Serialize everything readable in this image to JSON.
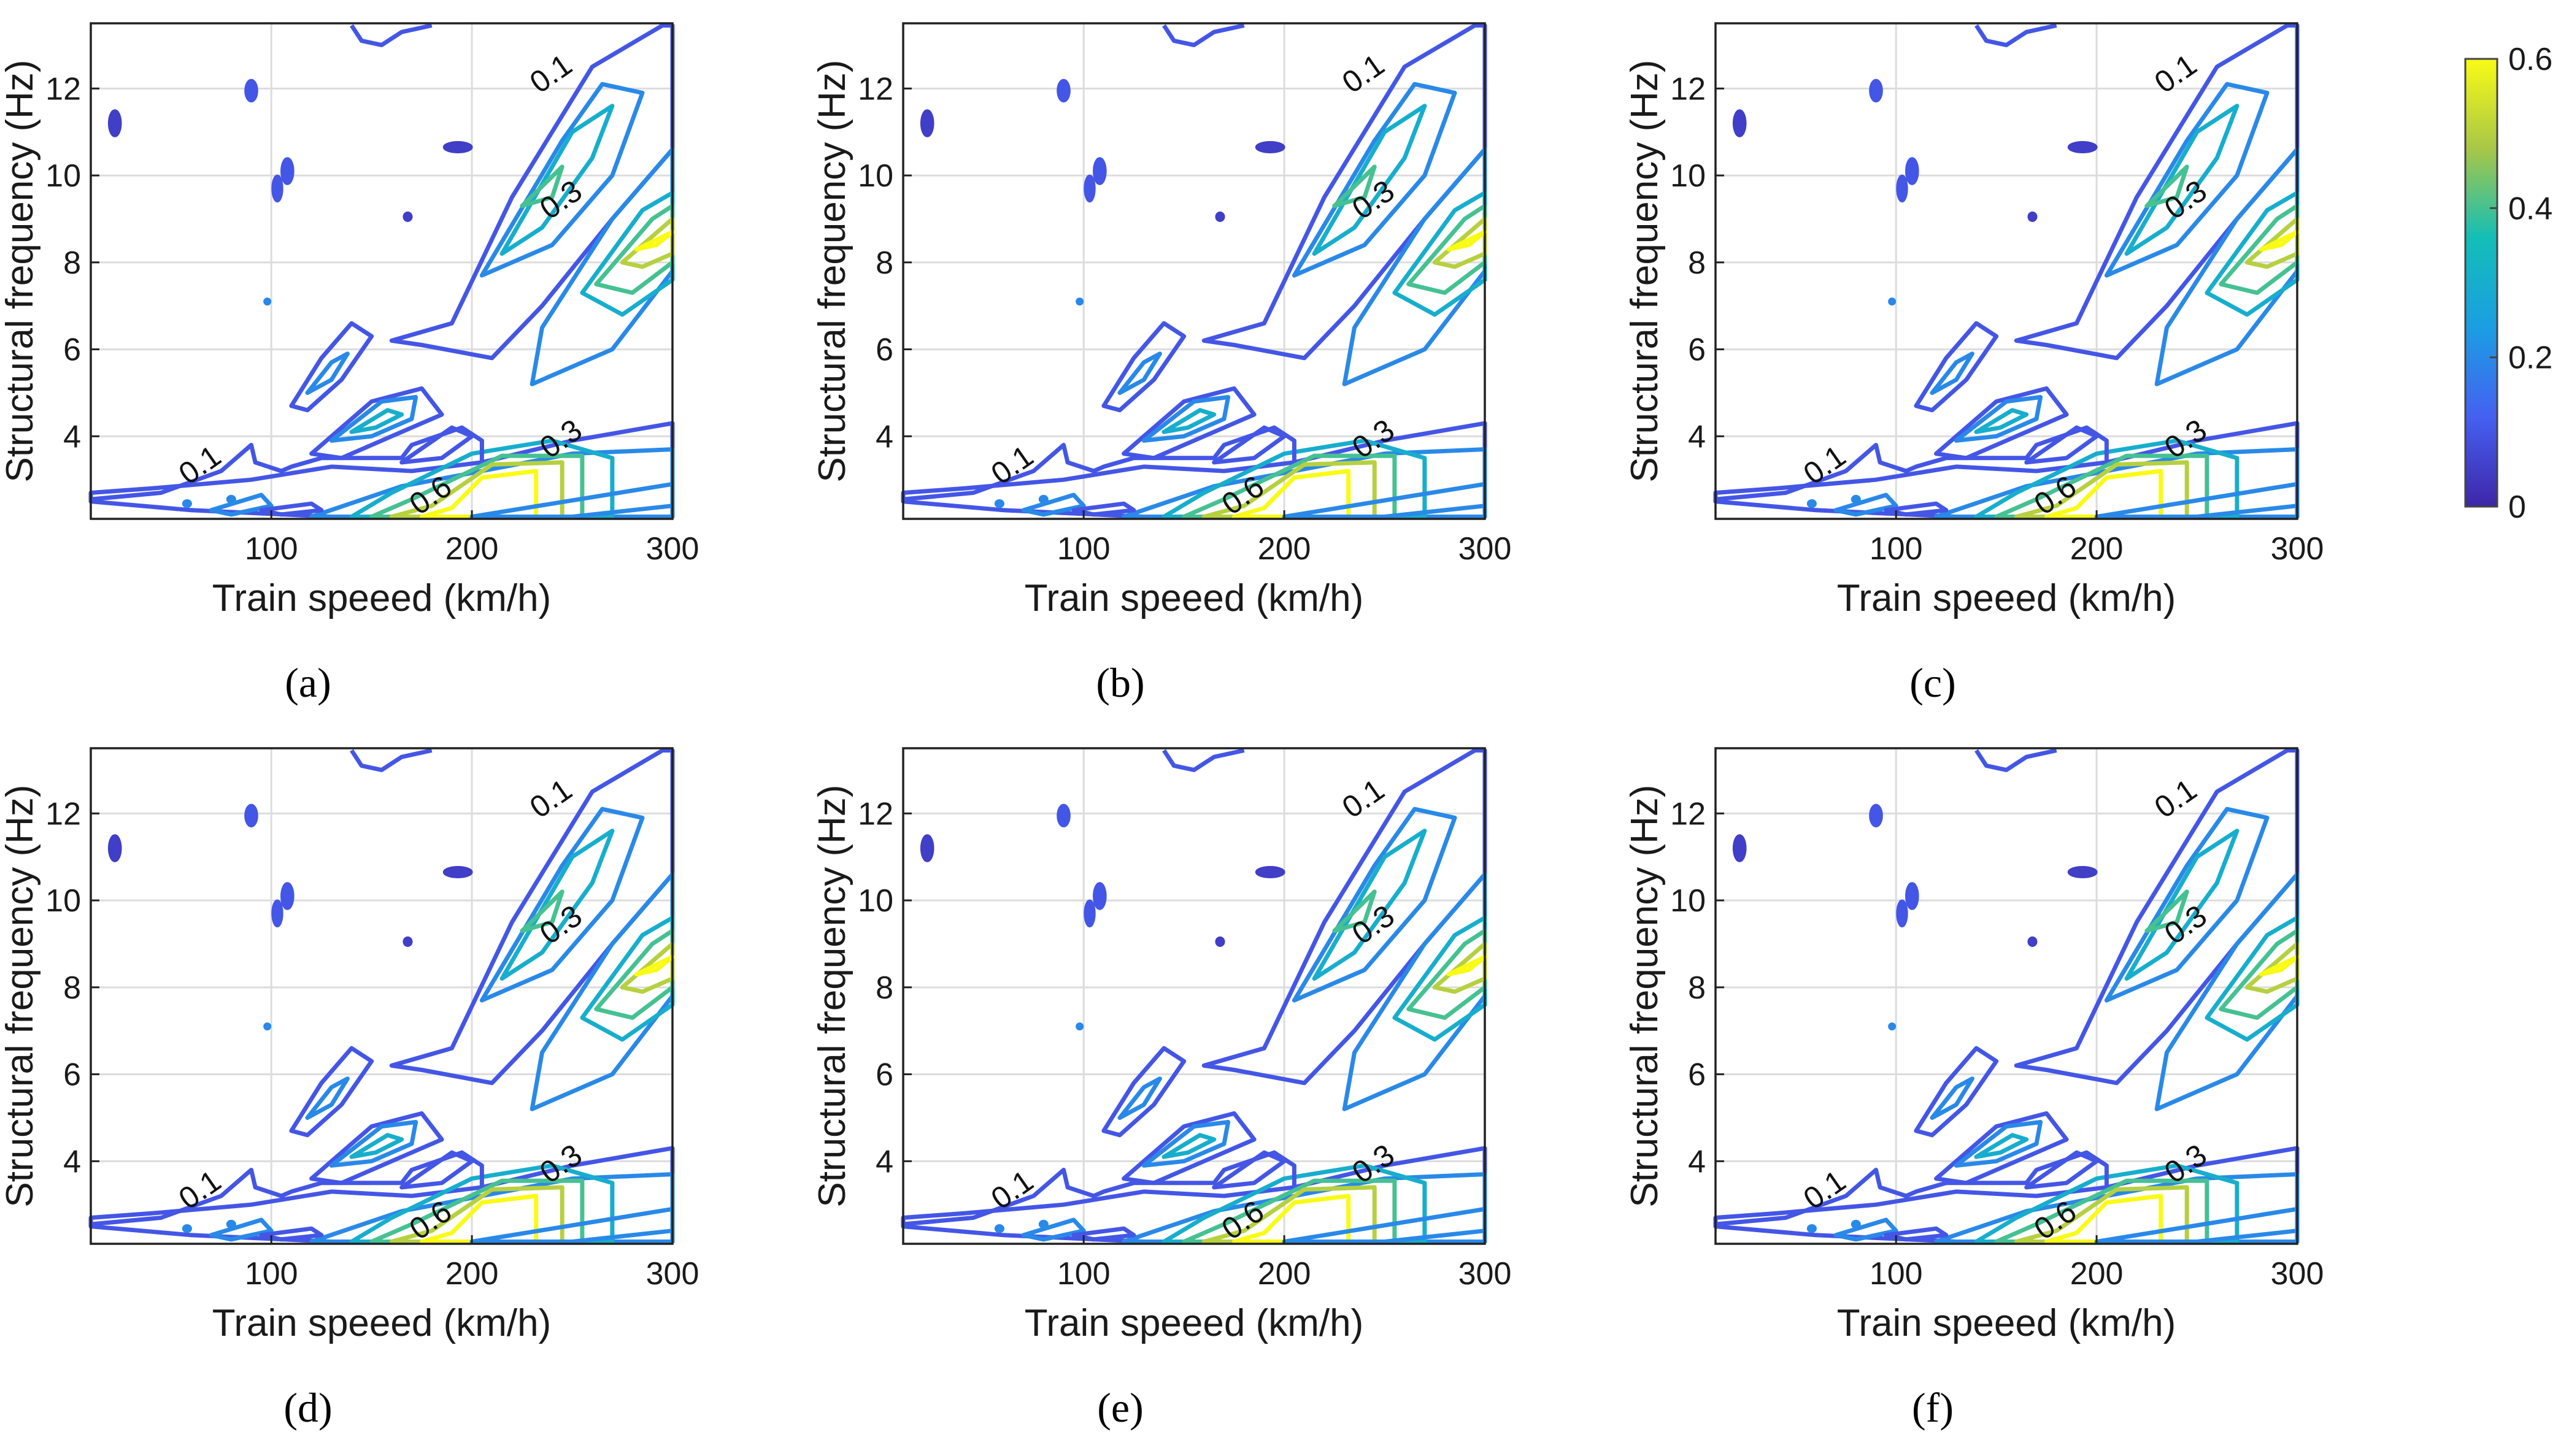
{
  "figure": {
    "panel_labels": [
      "(a)",
      "(b)",
      "(c)",
      "(d)",
      "(e)",
      "(f)"
    ],
    "colorbar": {
      "min": 0,
      "max": 0.6,
      "tick_labels": [
        "0",
        "0.2",
        "0.4",
        "0.6"
      ]
    }
  },
  "chart_data": [
    {
      "type": "contour",
      "panel": "a",
      "xlabel": "Train speeed (km/h)",
      "ylabel": "Structural frequency (Hz)",
      "xlim": [
        10,
        300
      ],
      "ylim": [
        2.1,
        13.5
      ],
      "xticks": [
        "100",
        "200",
        "300"
      ],
      "yticks": [
        "4",
        "6",
        "8",
        "10",
        "12"
      ],
      "contour_labels": [
        {
          "text": "0.1",
          "x": 240,
          "y": 12.3
        },
        {
          "text": "0.3",
          "x": 245,
          "y": 9.4
        },
        {
          "text": "0.1",
          "x": 65,
          "y": 3.3
        },
        {
          "text": "0.3",
          "x": 245,
          "y": 3.9
        },
        {
          "text": "0.6",
          "x": 180,
          "y": 2.6
        }
      ],
      "levels": [
        0.1,
        0.2,
        0.3,
        0.4,
        0.5,
        0.6
      ],
      "grid": true
    },
    {
      "type": "contour",
      "panel": "b",
      "xlabel": "Train speeed (km/h)",
      "ylabel": "Structural frequency (Hz)",
      "xlim": [
        10,
        300
      ],
      "ylim": [
        2.1,
        13.5
      ],
      "xticks": [
        "100",
        "200",
        "300"
      ],
      "yticks": [
        "4",
        "6",
        "8",
        "10",
        "12"
      ],
      "contour_labels": [
        {
          "text": "0.1",
          "x": 240,
          "y": 12.3
        },
        {
          "text": "0.3",
          "x": 245,
          "y": 9.4
        },
        {
          "text": "0.1",
          "x": 65,
          "y": 3.3
        },
        {
          "text": "0.3",
          "x": 245,
          "y": 3.9
        },
        {
          "text": "0.6",
          "x": 180,
          "y": 2.6
        }
      ],
      "levels": [
        0.1,
        0.2,
        0.3,
        0.4,
        0.5,
        0.6
      ],
      "grid": true
    },
    {
      "type": "contour",
      "panel": "c",
      "xlabel": "Train speeed (km/h)",
      "ylabel": "Structural frequency (Hz)",
      "xlim": [
        10,
        300
      ],
      "ylim": [
        2.1,
        13.5
      ],
      "xticks": [
        "100",
        "200",
        "300"
      ],
      "yticks": [
        "4",
        "6",
        "8",
        "10",
        "12"
      ],
      "contour_labels": [
        {
          "text": "0.1",
          "x": 240,
          "y": 12.3
        },
        {
          "text": "0.3",
          "x": 245,
          "y": 9.4
        },
        {
          "text": "0.1",
          "x": 65,
          "y": 3.3
        },
        {
          "text": "0.3",
          "x": 245,
          "y": 3.9
        },
        {
          "text": "0.6",
          "x": 180,
          "y": 2.6
        }
      ],
      "levels": [
        0.1,
        0.2,
        0.3,
        0.4,
        0.5,
        0.6
      ],
      "grid": true
    },
    {
      "type": "contour",
      "panel": "d",
      "xlabel": "Train speeed (km/h)",
      "ylabel": "Structural frequency (Hz)",
      "xlim": [
        10,
        300
      ],
      "ylim": [
        2.1,
        13.5
      ],
      "xticks": [
        "100",
        "200",
        "300"
      ],
      "yticks": [
        "4",
        "6",
        "8",
        "10",
        "12"
      ],
      "contour_labels": [
        {
          "text": "0.1",
          "x": 240,
          "y": 12.3
        },
        {
          "text": "0.3",
          "x": 245,
          "y": 9.4
        },
        {
          "text": "0.1",
          "x": 65,
          "y": 3.3
        },
        {
          "text": "0.3",
          "x": 245,
          "y": 3.9
        },
        {
          "text": "0.6",
          "x": 180,
          "y": 2.6
        }
      ],
      "levels": [
        0.1,
        0.2,
        0.3,
        0.4,
        0.5,
        0.6
      ],
      "grid": true
    },
    {
      "type": "contour",
      "panel": "e",
      "xlabel": "Train speeed (km/h)",
      "ylabel": "Structural frequency (Hz)",
      "xlim": [
        10,
        300
      ],
      "ylim": [
        2.1,
        13.5
      ],
      "xticks": [
        "100",
        "200",
        "300"
      ],
      "yticks": [
        "4",
        "6",
        "8",
        "10",
        "12"
      ],
      "contour_labels": [
        {
          "text": "0.1",
          "x": 240,
          "y": 12.3
        },
        {
          "text": "0.3",
          "x": 245,
          "y": 9.4
        },
        {
          "text": "0.1",
          "x": 65,
          "y": 3.3
        },
        {
          "text": "0.3",
          "x": 245,
          "y": 3.9
        },
        {
          "text": "0.6",
          "x": 180,
          "y": 2.6
        }
      ],
      "levels": [
        0.1,
        0.2,
        0.3,
        0.4,
        0.5,
        0.6
      ],
      "grid": true
    },
    {
      "type": "contour",
      "panel": "f",
      "xlabel": "Train speeed (km/h)",
      "ylabel": "Structural frequency (Hz)",
      "xlim": [
        10,
        300
      ],
      "ylim": [
        2.1,
        13.5
      ],
      "xticks": [
        "100",
        "200",
        "300"
      ],
      "yticks": [
        "4",
        "6",
        "8",
        "10",
        "12"
      ],
      "contour_labels": [
        {
          "text": "0.1",
          "x": 240,
          "y": 12.3
        },
        {
          "text": "0.3",
          "x": 245,
          "y": 9.4
        },
        {
          "text": "0.1",
          "x": 65,
          "y": 3.3
        },
        {
          "text": "0.3",
          "x": 245,
          "y": 3.9
        },
        {
          "text": "0.6",
          "x": 180,
          "y": 2.6
        }
      ],
      "levels": [
        0.1,
        0.2,
        0.3,
        0.4,
        0.5,
        0.6
      ],
      "grid": true
    }
  ]
}
